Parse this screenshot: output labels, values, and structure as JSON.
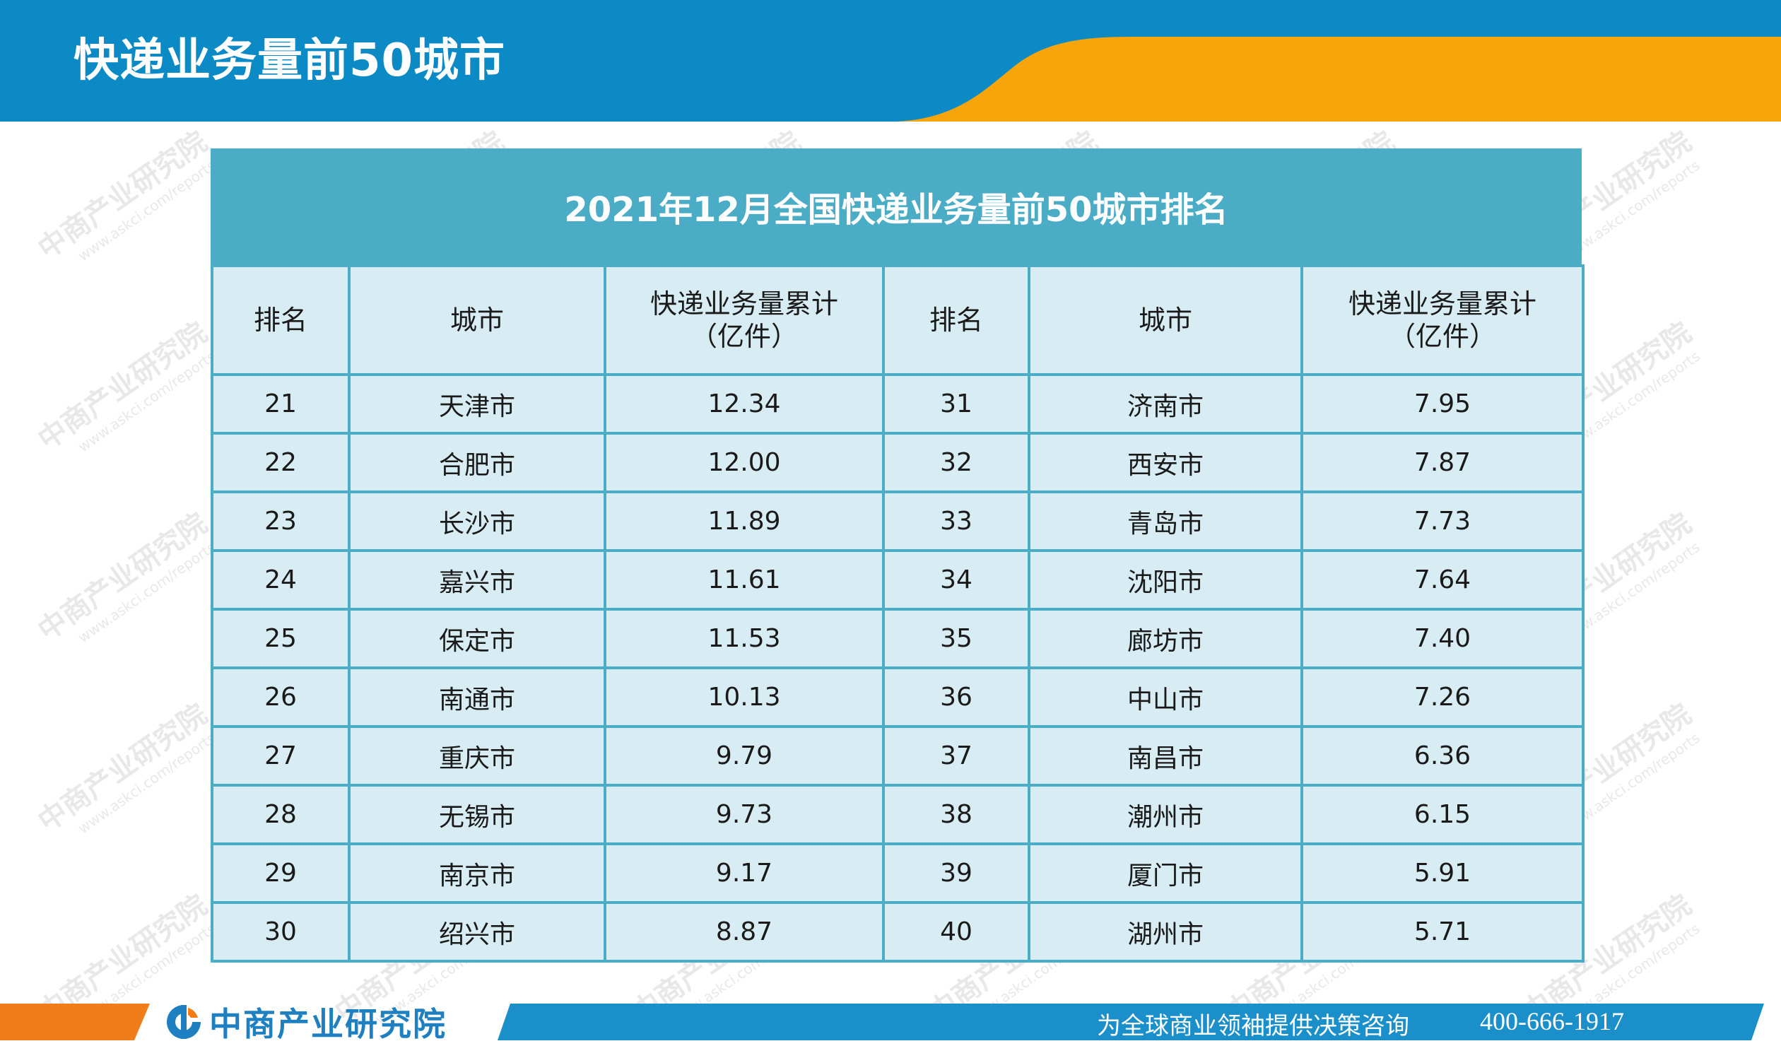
{
  "header": {
    "title": "快递业务量前50城市"
  },
  "table": {
    "title": "2021年12月全国快递业务量前50城市排名",
    "headers": {
      "rank": "排名",
      "city": "城市",
      "volume_line1": "快递业务量累计",
      "volume_line2": "（亿件）"
    },
    "rows": [
      {
        "rank_a": "21",
        "city_a": "天津市",
        "vol_a": "12.34",
        "rank_b": "31",
        "city_b": "济南市",
        "vol_b": "7.95"
      },
      {
        "rank_a": "22",
        "city_a": "合肥市",
        "vol_a": "12.00",
        "rank_b": "32",
        "city_b": "西安市",
        "vol_b": "7.87"
      },
      {
        "rank_a": "23",
        "city_a": "长沙市",
        "vol_a": "11.89",
        "rank_b": "33",
        "city_b": "青岛市",
        "vol_b": "7.73"
      },
      {
        "rank_a": "24",
        "city_a": "嘉兴市",
        "vol_a": "11.61",
        "rank_b": "34",
        "city_b": "沈阳市",
        "vol_b": "7.64"
      },
      {
        "rank_a": "25",
        "city_a": "保定市",
        "vol_a": "11.53",
        "rank_b": "35",
        "city_b": "廊坊市",
        "vol_b": "7.40"
      },
      {
        "rank_a": "26",
        "city_a": "南通市",
        "vol_a": "10.13",
        "rank_b": "36",
        "city_b": "中山市",
        "vol_b": "7.26"
      },
      {
        "rank_a": "27",
        "city_a": "重庆市",
        "vol_a": "9.79",
        "rank_b": "37",
        "city_b": "南昌市",
        "vol_b": "6.36"
      },
      {
        "rank_a": "28",
        "city_a": "无锡市",
        "vol_a": "9.73",
        "rank_b": "38",
        "city_b": "潮州市",
        "vol_b": "6.15"
      },
      {
        "rank_a": "29",
        "city_a": "南京市",
        "vol_a": "9.17",
        "rank_b": "39",
        "city_b": "厦门市",
        "vol_b": "5.91"
      },
      {
        "rank_a": "30",
        "city_a": "绍兴市",
        "vol_a": "8.87",
        "rank_b": "40",
        "city_b": "湖州市",
        "vol_b": "5.71"
      }
    ]
  },
  "watermark": {
    "main": "中商产业研究院",
    "sub": "www.askci.com/reports"
  },
  "footer": {
    "logo_text": "中商产业研究院",
    "slogan": "为全球商业领袖提供决策咨询",
    "phone": "400-666-1917"
  },
  "colors": {
    "header_blue": "#0b8ac6",
    "accent_orange": "#f8a50b",
    "table_teal": "#4bacc6",
    "table_cell": "#d8edf3",
    "footer_orange": "#ee7d1a",
    "logo_blue": "#1e7fc1"
  }
}
